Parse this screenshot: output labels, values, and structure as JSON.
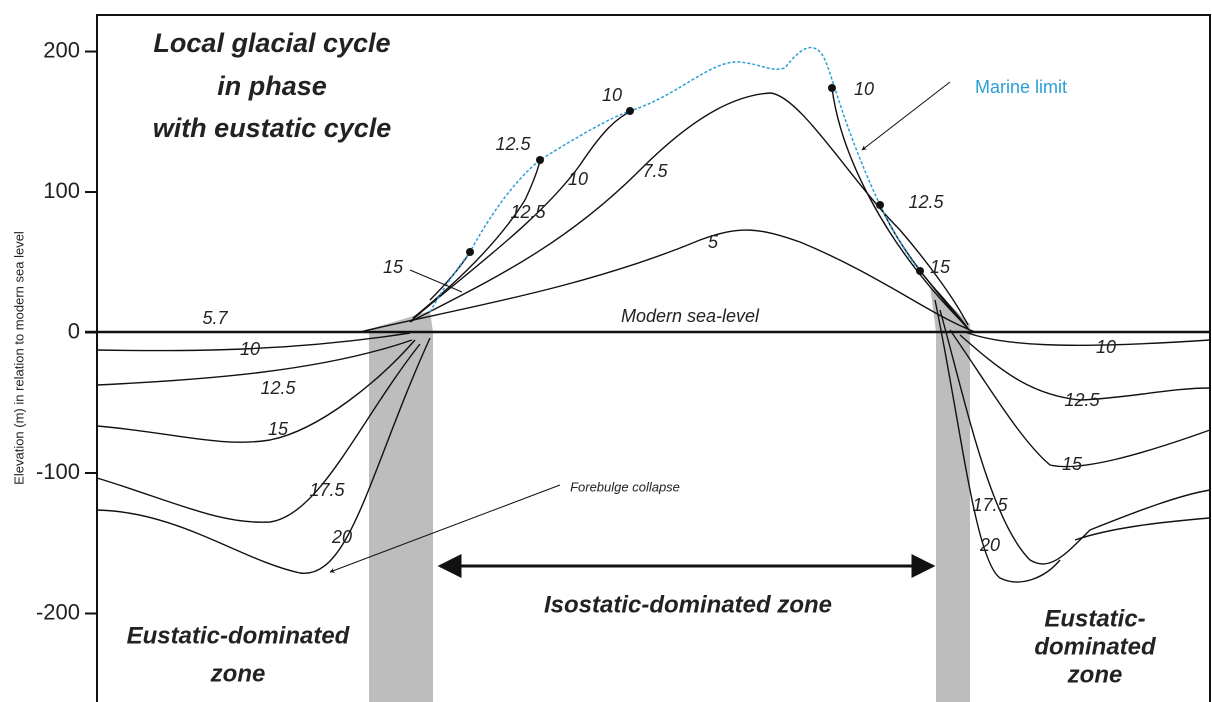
{
  "title": [
    "Local glacial cycle",
    "in phase",
    "with eustatic cycle"
  ],
  "axis": {
    "label": "Elevation  (m) in relation to modern sea level",
    "ylim": [
      -263,
      226
    ],
    "yticks": [
      200,
      100,
      0,
      -100,
      -200
    ]
  },
  "isolines_above": [
    "10",
    "12.5",
    "12.5",
    "10",
    "7.5",
    "15",
    "5",
    "10",
    "12.5",
    "15"
  ],
  "marine_limit": "Marine limit",
  "sea_level": {
    "age": "5.7",
    "label": "Modern sea-level"
  },
  "isolines_left": [
    "10",
    "12.5",
    "15",
    "17.5",
    "20"
  ],
  "isolines_right": [
    "10",
    "12.5",
    "15",
    "17.5",
    "20"
  ],
  "forebulge": "Forebulge collapse",
  "zones": {
    "isostatic": "Isostatic-dominated zone",
    "eustatic_left": [
      "Eustatic-dominated",
      "zone"
    ],
    "eustatic_right": [
      "Eustatic-",
      "dominated",
      "zone"
    ]
  }
}
